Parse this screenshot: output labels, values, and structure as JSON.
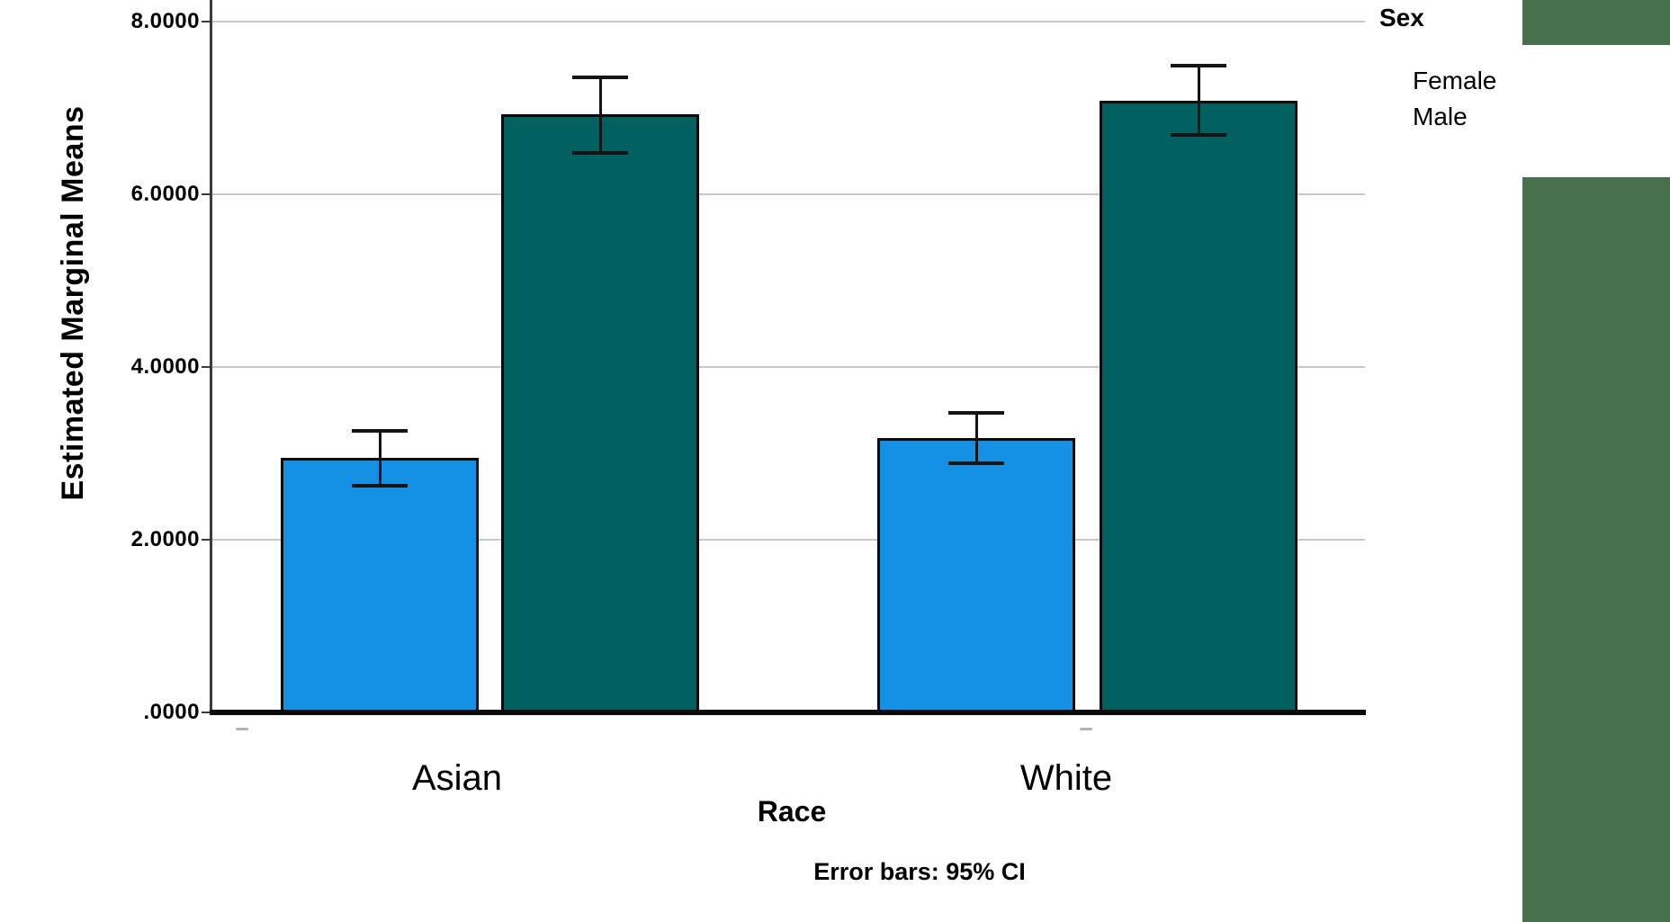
{
  "chart_data": {
    "type": "bar",
    "title": "",
    "ylabel": "Estimated Marginal Means",
    "xlabel": "Race",
    "footnote": "Error bars: 95% CI",
    "legend_title": "Sex",
    "legend_entries": [
      "Female",
      "Male"
    ],
    "legend_position": "top-right",
    "grid": "horizontal",
    "categories": [
      "Asian",
      "White"
    ],
    "series": [
      {
        "name": "Female",
        "color": "#1490E4",
        "values": [
          2.95,
          3.18
        ],
        "ci_low": [
          2.63,
          2.89
        ],
        "ci_high": [
          3.26,
          3.47
        ]
      },
      {
        "name": "Male",
        "color": "#005F5F",
        "values": [
          6.93,
          7.08
        ],
        "ci_low": [
          6.48,
          6.69
        ],
        "ci_high": [
          7.35,
          7.49
        ]
      }
    ],
    "yticks": [
      {
        "label": ".0000",
        "value": 0
      },
      {
        "label": "2.0000",
        "value": 2
      },
      {
        "label": "4.0000",
        "value": 4
      },
      {
        "label": "6.0000",
        "value": 6
      },
      {
        "label": "8.0000",
        "value": 8
      }
    ],
    "ylim": [
      0,
      8.35
    ]
  },
  "decorations": {
    "background": "#FFFFFF",
    "side_panel_color": "#47714D"
  }
}
